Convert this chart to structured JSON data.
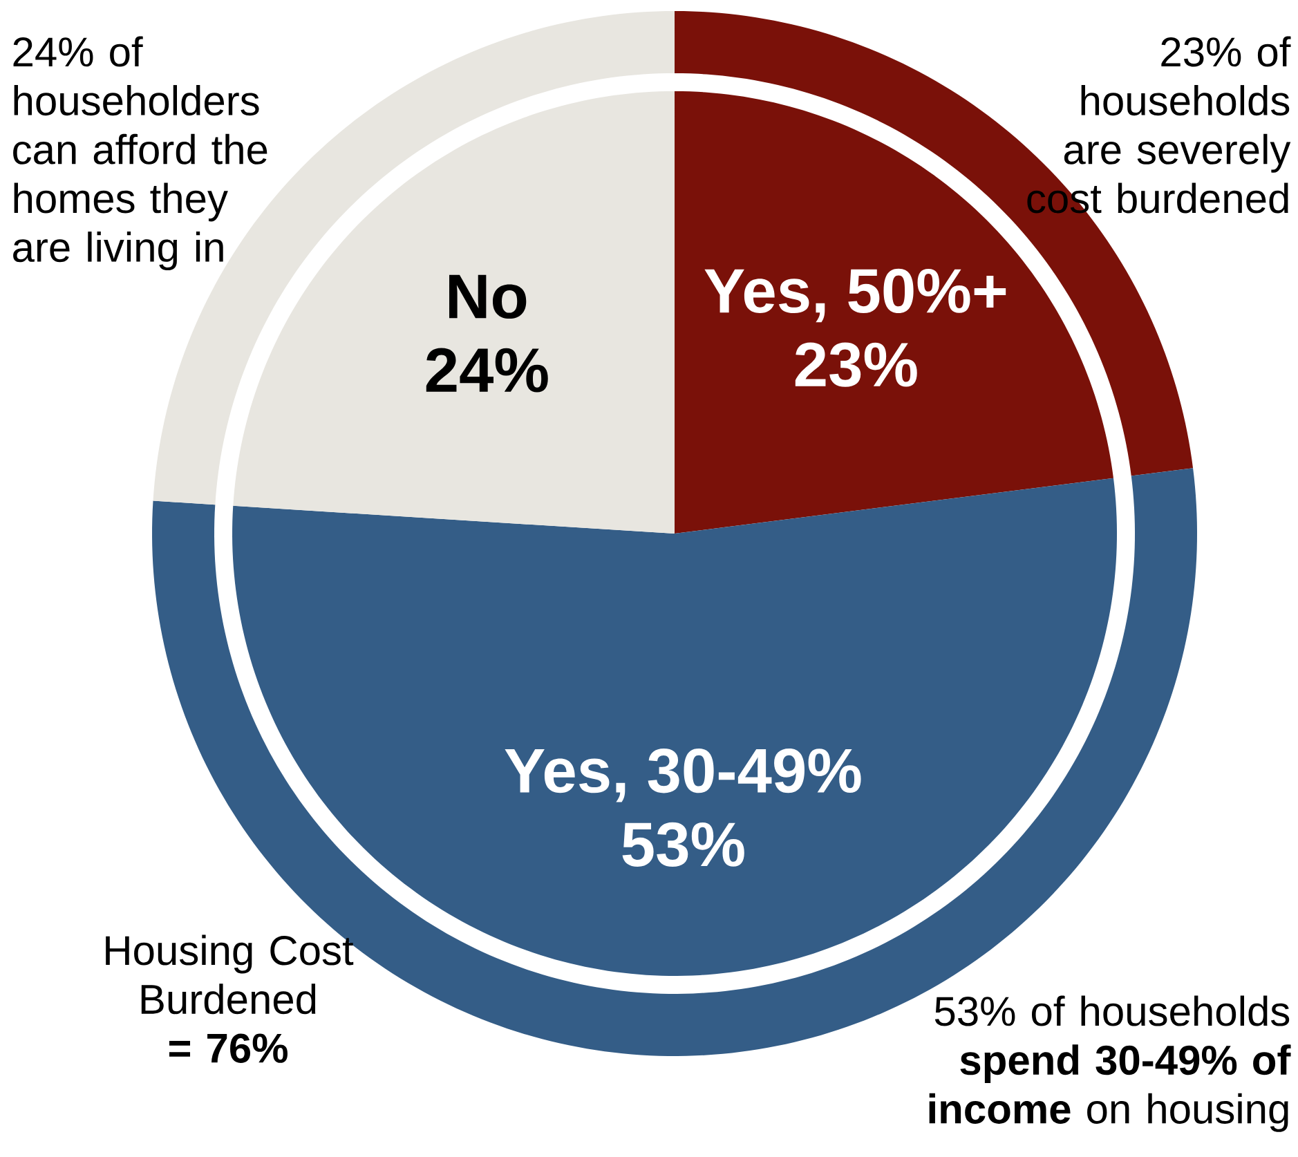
{
  "chart_data": {
    "type": "pie",
    "categories": [
      "Yes, 50%+",
      "Yes, 30-49%",
      "No"
    ],
    "values": [
      23,
      53,
      24
    ],
    "colors": [
      "#7a1109",
      "#345d87",
      "#e8e6e0"
    ],
    "value_labels": [
      "23%",
      "53%",
      "24%"
    ],
    "annotations": [
      "24% of householders can afford the homes they are living in",
      "23% of households are severely cost burdened",
      "Housing Cost Burdened **= 76%**",
      "53% of households **spend 30-49% of income** on housing"
    ]
  }
}
